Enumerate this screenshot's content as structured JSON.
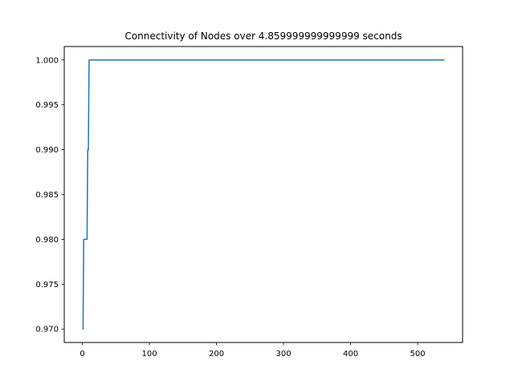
{
  "chart_data": {
    "type": "line",
    "title": "Connectivity of Nodes over 4.859999999999999 seconds",
    "xlabel": "",
    "ylabel": "",
    "xlim": [
      -27,
      567
    ],
    "ylim": [
      0.9685,
      1.0015
    ],
    "x_ticks": [
      0,
      100,
      200,
      300,
      400,
      500
    ],
    "y_ticks": [
      0.97,
      0.975,
      0.98,
      0.985,
      0.99,
      0.995,
      1.0
    ],
    "x_tick_labels": [
      "0",
      "100",
      "200",
      "300",
      "400",
      "500"
    ],
    "y_tick_labels": [
      "0.970",
      "0.975",
      "0.980",
      "0.985",
      "0.990",
      "0.995",
      "1.000"
    ],
    "grid": false,
    "series": [
      {
        "color": "#1f77b4",
        "x": [
          0,
          1,
          2,
          3,
          4,
          5,
          6,
          7,
          8,
          9,
          10,
          11,
          540
        ],
        "y": [
          0.97,
          0.97,
          0.98,
          0.98,
          0.98,
          0.98,
          0.98,
          0.98,
          0.99,
          0.99,
          1.0,
          1.0,
          1.0
        ]
      }
    ]
  }
}
